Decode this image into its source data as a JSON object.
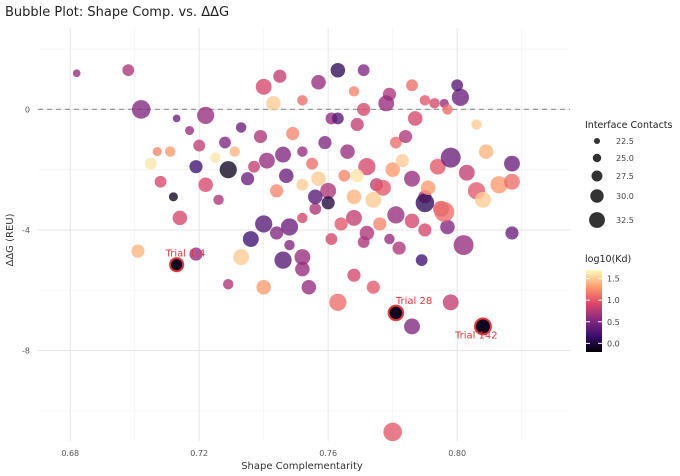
{
  "chart_data": {
    "type": "scatter",
    "title": "Bubble Plot: Shape Comp. vs. ΔΔG",
    "xlabel": "Shape Complementarity",
    "ylabel": "ΔΔG (REU)",
    "xlim": [
      0.67,
      0.835
    ],
    "ylim": [
      -11,
      2.7
    ],
    "x_ticks": [
      0.68,
      0.72,
      0.76,
      0.8
    ],
    "x_tick_labels": [
      "0.68",
      "0.72",
      "0.76",
      "0.80"
    ],
    "y_ticks": [
      0,
      -4,
      -8
    ],
    "y_tick_labels": [
      "0",
      "-4",
      "-8"
    ],
    "reference_line": {
      "y": 0,
      "style": "dashed"
    },
    "grid": true,
    "size_legend": {
      "title": "Interface Contacts",
      "labels": [
        "22.5",
        "25.0",
        "27.5",
        "30.0",
        "32.5"
      ],
      "values": [
        22.5,
        25.0,
        27.5,
        30.0,
        32.5
      ]
    },
    "color_legend": {
      "title": "log10(Kd)",
      "labels": [
        "1.5",
        "1.0",
        "0.5",
        "0.0"
      ],
      "values": [
        1.5,
        1.0,
        0.5,
        0.0
      ],
      "range": [
        -0.2,
        1.7
      ],
      "palette": [
        "#000004",
        "#3b0f70",
        "#8c2981",
        "#de4968",
        "#fe9f6d",
        "#fcfdbf"
      ]
    },
    "annotations": [
      {
        "label": "Trial 1:4",
        "x": 0.713,
        "y": -5.15,
        "size": 26,
        "kd": -0.1
      },
      {
        "label": "Trial 28",
        "x": 0.781,
        "y": -6.75,
        "size": 27,
        "kd": -0.1
      },
      {
        "label": "Trial 142",
        "x": 0.808,
        "y": -7.2,
        "size": 28,
        "kd": -0.1
      }
    ],
    "points": [
      [
        0.682,
        1.2,
        22,
        0.6
      ],
      [
        0.698,
        1.3,
        25,
        0.7
      ],
      [
        0.763,
        1.3,
        27,
        0.1
      ],
      [
        0.771,
        1.3,
        25,
        0.5
      ],
      [
        0.702,
        0.0,
        30,
        0.5
      ],
      [
        0.74,
        0.75,
        28,
        0.9
      ],
      [
        0.757,
        0.9,
        27,
        0.6
      ],
      [
        0.786,
        0.8,
        25,
        1.1
      ],
      [
        0.801,
        0.4,
        29,
        0.4
      ],
      [
        0.8,
        0.8,
        25,
        0.3
      ],
      [
        0.793,
        0.2,
        24,
        0.9
      ],
      [
        0.768,
        0.6,
        24,
        1.2
      ],
      [
        0.745,
        1.1,
        26,
        0.8
      ],
      [
        0.779,
        0.5,
        26,
        0.7
      ],
      [
        0.752,
        0.3,
        24,
        1.1
      ],
      [
        0.778,
        0.2,
        28,
        0.6
      ],
      [
        0.733,
        -0.6,
        24,
        0.4
      ],
      [
        0.722,
        -0.2,
        29,
        0.6
      ],
      [
        0.713,
        -0.3,
        22,
        0.4
      ],
      [
        0.717,
        -0.7,
        23,
        0.6
      ],
      [
        0.743,
        0.2,
        27,
        1.5
      ],
      [
        0.761,
        -0.3,
        25,
        0.6
      ],
      [
        0.771,
        0.0,
        26,
        0.9
      ],
      [
        0.787,
        -0.3,
        27,
        0.9
      ],
      [
        0.79,
        0.3,
        24,
        1.0
      ],
      [
        0.796,
        0.2,
        23,
        0.6
      ],
      [
        0.806,
        -0.5,
        24,
        1.5
      ],
      [
        0.797,
        0.0,
        24,
        1.1
      ],
      [
        0.739,
        -0.9,
        26,
        0.7
      ],
      [
        0.728,
        -1.1,
        25,
        0.5
      ],
      [
        0.725,
        -1.6,
        24,
        1.6
      ],
      [
        0.72,
        -1.2,
        25,
        0.8
      ],
      [
        0.711,
        -1.4,
        24,
        1.3
      ],
      [
        0.707,
        -1.4,
        23,
        1.2
      ],
      [
        0.705,
        -1.8,
        25,
        1.6
      ],
      [
        0.708,
        -2.4,
        25,
        0.9
      ],
      [
        0.712,
        -2.9,
        23,
        -0.1
      ],
      [
        0.714,
        -3.6,
        27,
        0.9
      ],
      [
        0.719,
        -1.9,
        26,
        0.2
      ],
      [
        0.722,
        -2.5,
        27,
        0.9
      ],
      [
        0.729,
        -2.0,
        29,
        -0.1
      ],
      [
        0.735,
        -2.3,
        26,
        0.4
      ],
      [
        0.741,
        -1.7,
        28,
        0.6
      ],
      [
        0.747,
        -2.2,
        27,
        0.4
      ],
      [
        0.752,
        -1.4,
        24,
        0.6
      ],
      [
        0.755,
        -1.8,
        25,
        1.1
      ],
      [
        0.76,
        -2.7,
        28,
        0.7
      ],
      [
        0.765,
        -2.2,
        25,
        1.2
      ],
      [
        0.768,
        -2.9,
        27,
        1.4
      ],
      [
        0.772,
        -1.9,
        29,
        0.9
      ],
      [
        0.775,
        -2.5,
        26,
        0.8
      ],
      [
        0.78,
        -2.0,
        27,
        1.3
      ],
      [
        0.783,
        -1.7,
        26,
        1.5
      ],
      [
        0.786,
        -2.3,
        28,
        0.6
      ],
      [
        0.79,
        -2.9,
        26,
        0.7
      ],
      [
        0.794,
        -1.9,
        28,
        1.0
      ],
      [
        0.798,
        -1.6,
        31,
        0.4
      ],
      [
        0.803,
        -2.1,
        28,
        0.8
      ],
      [
        0.806,
        -2.7,
        29,
        1.0
      ],
      [
        0.809,
        -1.4,
        27,
        1.4
      ],
      [
        0.813,
        -2.5,
        29,
        1.3
      ],
      [
        0.817,
        -1.8,
        28,
        0.4
      ],
      [
        0.817,
        -2.4,
        28,
        1.1
      ],
      [
        0.817,
        -4.1,
        26,
        0.4
      ],
      [
        0.808,
        -3.0,
        28,
        1.5
      ],
      [
        0.802,
        -4.5,
        31,
        0.6
      ],
      [
        0.795,
        -3.3,
        28,
        1.0
      ],
      [
        0.79,
        -3.1,
        30,
        0.1
      ],
      [
        0.786,
        -3.7,
        27,
        0.9
      ],
      [
        0.781,
        -3.5,
        29,
        0.6
      ],
      [
        0.776,
        -3.8,
        26,
        1.2
      ],
      [
        0.772,
        -4.1,
        27,
        0.7
      ],
      [
        0.768,
        -3.6,
        28,
        0.8
      ],
      [
        0.764,
        -3.8,
        26,
        1.0
      ],
      [
        0.76,
        -3.1,
        26,
        0.0
      ],
      [
        0.756,
        -3.3,
        25,
        0.7
      ],
      [
        0.752,
        -3.6,
        24,
        0.9
      ],
      [
        0.748,
        -3.9,
        29,
        0.4
      ],
      [
        0.744,
        -4.1,
        26,
        0.5
      ],
      [
        0.74,
        -3.8,
        29,
        0.3
      ],
      [
        0.736,
        -4.3,
        28,
        0.2
      ],
      [
        0.733,
        -4.9,
        28,
        1.5
      ],
      [
        0.729,
        -5.8,
        24,
        0.7
      ],
      [
        0.74,
        -5.9,
        27,
        1.3
      ],
      [
        0.746,
        -5.0,
        29,
        0.3
      ],
      [
        0.752,
        -4.9,
        28,
        0.6
      ],
      [
        0.752,
        -5.3,
        27,
        0.6
      ],
      [
        0.754,
        -5.9,
        27,
        0.6
      ],
      [
        0.763,
        -6.4,
        29,
        1.1
      ],
      [
        0.768,
        -5.5,
        26,
        0.9
      ],
      [
        0.774,
        -5.9,
        26,
        1.0
      ],
      [
        0.782,
        -4.6,
        26,
        0.7
      ],
      [
        0.789,
        -5.0,
        25,
        0.2
      ],
      [
        0.779,
        -4.3,
        24,
        0.6
      ],
      [
        0.79,
        -4.0,
        26,
        0.9
      ],
      [
        0.797,
        -3.9,
        27,
        0.5
      ],
      [
        0.786,
        -7.2,
        28,
        0.5
      ],
      [
        0.798,
        -6.4,
        28,
        0.8
      ],
      [
        0.78,
        -10.7,
        30,
        1.0
      ],
      [
        0.701,
        -4.7,
        26,
        1.4
      ],
      [
        0.719,
        -4.8,
        26,
        0.6
      ],
      [
        0.748,
        -4.5,
        24,
        0.5
      ],
      [
        0.761,
        -4.3,
        25,
        0.9
      ],
      [
        0.771,
        -4.4,
        25,
        0.7
      ],
      [
        0.726,
        -3.0,
        24,
        0.7
      ],
      [
        0.744,
        -2.7,
        26,
        1.2
      ],
      [
        0.757,
        -2.3,
        27,
        1.5
      ],
      [
        0.777,
        -2.6,
        28,
        1.0
      ],
      [
        0.791,
        -2.6,
        27,
        1.3
      ],
      [
        0.749,
        -0.8,
        26,
        1.2
      ],
      [
        0.759,
        -1.1,
        26,
        0.5
      ],
      [
        0.763,
        -0.3,
        25,
        0.3
      ],
      [
        0.769,
        -0.5,
        26,
        0.8
      ],
      [
        0.781,
        -1.1,
        25,
        1.1
      ],
      [
        0.784,
        -0.9,
        26,
        0.7
      ],
      [
        0.746,
        -1.5,
        28,
        0.5
      ],
      [
        0.737,
        -1.9,
        25,
        0.8
      ],
      [
        0.731,
        -1.4,
        24,
        1.4
      ],
      [
        0.766,
        -1.4,
        27,
        0.6
      ],
      [
        0.756,
        -2.9,
        27,
        0.3
      ],
      [
        0.769,
        -2.2,
        26,
        1.6
      ],
      [
        0.752,
        -2.5,
        25,
        1.5
      ],
      [
        0.796,
        -3.4,
        31,
        1.1
      ],
      [
        0.774,
        -3.0,
        28,
        1.5
      ]
    ]
  }
}
